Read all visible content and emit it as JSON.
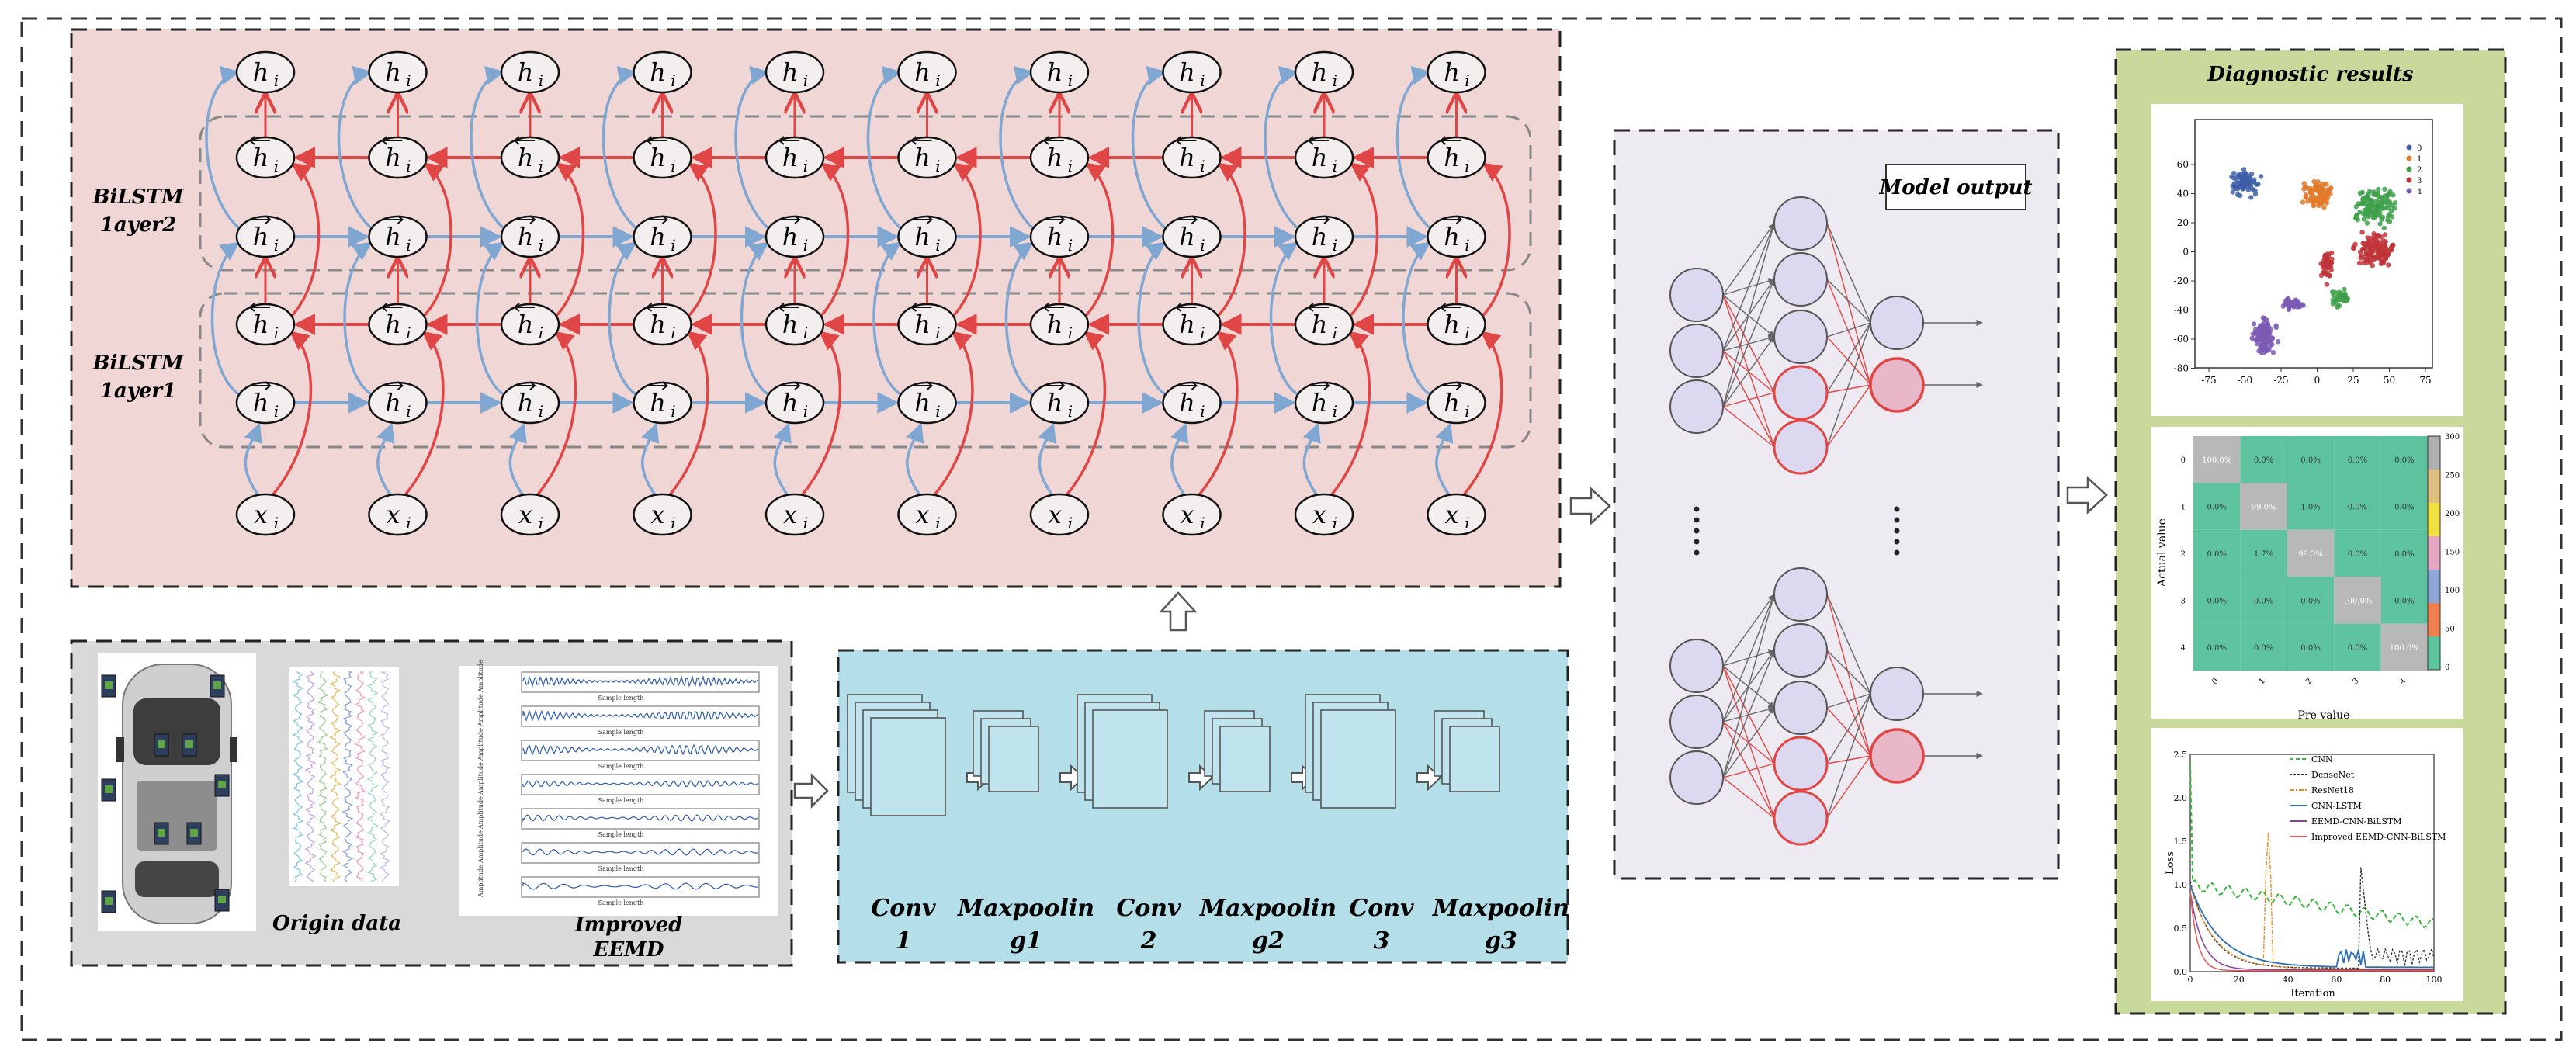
{
  "colors": {
    "bilstm_bg": "#f1d6d6",
    "data_bg": "#d9d9d9",
    "cnn_bg": "#b4dfe9",
    "output_bg": "#eeeaf1",
    "result_bg": "#c8d99b",
    "node_fill": "#f4efef",
    "nn_node": "#dcd8f0",
    "blue": "#7fa7d2",
    "red": "#e04646",
    "teal": "#5ec49f",
    "cell_gray": "#b8b8b8"
  },
  "bilstm": {
    "layer2_label": [
      "BiLSTM",
      "1ayer2"
    ],
    "layer1_label": [
      "BiLSTM",
      "1ayer1"
    ],
    "out_label": "h",
    "back_label": "h",
    "fwd_label": "h",
    "in_label": "x",
    "sub": "i",
    "steps": 10
  },
  "data": {
    "origin_label": "Origin data",
    "eemd_label": [
      "Improved",
      "EEMD"
    ],
    "eemd_axis": "Sample length",
    "eemd_ylabel": "Amplitude"
  },
  "cnn": {
    "layers": [
      [
        "Conv",
        "1"
      ],
      [
        "Maxpoolin",
        "g1"
      ],
      [
        "Conv",
        "2"
      ],
      [
        "Maxpoolin",
        "g2"
      ],
      [
        "Conv",
        "3"
      ],
      [
        "Maxpoolin",
        "g3"
      ]
    ]
  },
  "model_output": {
    "label": "Model output"
  },
  "results": {
    "title": "Diagnostic results",
    "tsne": {
      "legend": [
        "0",
        "1",
        "2",
        "3",
        "4"
      ],
      "legend_colors": [
        "#3e5fa8",
        "#e07a2c",
        "#3ea04a",
        "#c0343a",
        "#7a5bb5"
      ],
      "xticks": [
        "-75",
        "-50",
        "-25",
        "0",
        "25",
        "50",
        "75"
      ],
      "yticks": [
        "60",
        "40",
        "20",
        "0",
        "-20",
        "-40",
        "-60",
        "-80"
      ]
    },
    "confusion": {
      "ylabel": "Actual value",
      "xlabel": "Pre value",
      "row_labels": [
        "0",
        "1",
        "2",
        "3",
        "4"
      ],
      "col_labels": [
        "0",
        "1",
        "2",
        "3",
        "4"
      ],
      "cells": [
        [
          "100.0%",
          "0.0%",
          "0.0%",
          "0.0%",
          "0.0%"
        ],
        [
          "0.0%",
          "99.0%",
          "1.0%",
          "0.0%",
          "0.0%"
        ],
        [
          "0.0%",
          "1.7%",
          "98.3%",
          "0.0%",
          "0.0%"
        ],
        [
          "0.0%",
          "0.0%",
          "0.0%",
          "100.0%",
          "0.0%"
        ],
        [
          "0.0%",
          "0.0%",
          "0.0%",
          "0.0%",
          "100.0%"
        ]
      ],
      "colorbar_ticks": [
        "300",
        "250",
        "200",
        "150",
        "100",
        "50",
        "0"
      ]
    },
    "loss": {
      "ylabel": "Loss",
      "xlabel": "Iteration",
      "xticks": [
        "0",
        "20",
        "40",
        "60",
        "80",
        "100"
      ],
      "yticks": [
        "2.5",
        "2.0",
        "1.5",
        "1.0",
        "0.5",
        "0.0"
      ],
      "legend": [
        "CNN",
        "DenseNet",
        "ResNet18",
        "CNN-LSTM",
        "EEMD-CNN-BiLSTM",
        "Improved EEMD-CNN-BiLSTM"
      ],
      "legend_colors": [
        "#39b43d",
        "#333333",
        "#e5922a",
        "#2f6fb4",
        "#8a3fa0",
        "#e65a5a"
      ]
    }
  }
}
